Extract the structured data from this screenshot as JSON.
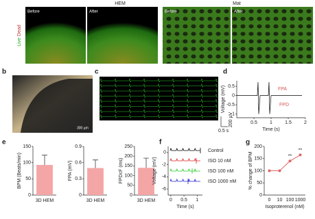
{
  "panels": {
    "a": {
      "groups": [
        "HEM",
        "Mat"
      ],
      "stain_label": [
        "Live",
        "Dead"
      ],
      "images": [
        "Before",
        "After",
        "Before",
        "After"
      ]
    },
    "b": {
      "letter": "b",
      "scale": "300 µm"
    },
    "c": {
      "letter": "c",
      "scale_v": "200 µV",
      "scale_t": "0.5 s"
    },
    "d": {
      "letter": "d"
    },
    "e": {
      "letter": "e"
    },
    "f": {
      "letter": "f"
    },
    "g": {
      "letter": "g"
    }
  },
  "chart_data": [
    {
      "type": "trace",
      "ylabel": "Voltage (mV)",
      "xlabel": "Time (s)",
      "xlim": [
        0,
        2
      ],
      "xticks": [
        0.5,
        1,
        1.5,
        2
      ],
      "ylim": [
        -1.2,
        0.8
      ],
      "yticks": [
        -1,
        -0.5,
        0,
        0.5
      ],
      "annotations": [
        "FPA",
        "FPD"
      ]
    },
    {
      "type": "bar",
      "ylabel": "BPM (Beats/min)",
      "categories": [
        "3D HEM"
      ],
      "values": [
        93
      ],
      "errors": [
        30
      ],
      "color": "#f4a6a6",
      "ylim": [
        0,
        150
      ],
      "yticks": [
        0,
        50,
        100,
        150
      ]
    },
    {
      "type": "bar",
      "ylabel": "FPA (mV)",
      "categories": [
        "3D HEM"
      ],
      "values": [
        0.5
      ],
      "errors": [
        0.15
      ],
      "color": "#f4a6a6",
      "ylim": [
        0,
        0.9
      ],
      "yticks": [
        0,
        0.3,
        0.6,
        0.9
      ]
    },
    {
      "type": "bar",
      "ylabel": "FPDcF (ms)",
      "categories": [
        "3D HEM"
      ],
      "values": [
        140
      ],
      "errors": [
        50
      ],
      "color": "#f4a6a6",
      "ylim": [
        0,
        250
      ],
      "yticks": [
        0,
        50,
        100,
        150,
        200,
        250
      ]
    },
    {
      "type": "trace",
      "ylabel": "Voltage (mV)",
      "xlabel": "Time (s)",
      "xlim": [
        -0.1,
        1.2
      ],
      "xticks": [
        0,
        0.5,
        1
      ],
      "ylim": [
        -7,
        1
      ],
      "yticks": [
        0,
        -2,
        -4,
        -6
      ],
      "series_labels": [
        "Control",
        "ISO 10 nM",
        "ISO 100 nM",
        "ISO 1000 nM"
      ]
    },
    {
      "type": "line",
      "ylabel": "% change of BPM",
      "xlabel": "Isoproterenol (nM)",
      "categories": [
        "0",
        "10",
        "100",
        "1000"
      ],
      "values": [
        100,
        100,
        140,
        165
      ],
      "color": "#e06666",
      "ylim": [
        0,
        200
      ],
      "yticks": [
        0,
        50,
        100,
        150,
        200
      ],
      "annotations": [
        "**",
        "**"
      ]
    }
  ]
}
